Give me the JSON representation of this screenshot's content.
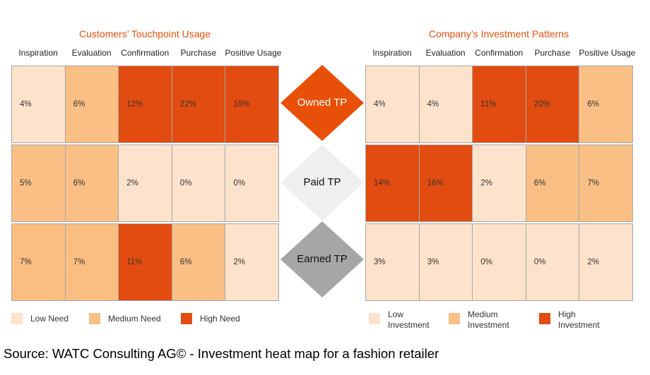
{
  "chart_data": [
    {
      "type": "heatmap",
      "title": "Customers’ Touchpoint Usage",
      "columns": [
        "Inspiration",
        "Evaluation",
        "Confirmation",
        "Purchase",
        "Positive Usage"
      ],
      "rows": [
        "Owned TP",
        "Paid TP",
        "Earned TP"
      ],
      "values": [
        [
          "4%",
          "6%",
          "12%",
          "22%",
          "10%"
        ],
        [
          "5%",
          "6%",
          "2%",
          "0%",
          "0%"
        ],
        [
          "7%",
          "7%",
          "11%",
          "6%",
          "2%"
        ]
      ],
      "levels": [
        [
          "low",
          "medium",
          "high",
          "high",
          "high"
        ],
        [
          "medium",
          "medium",
          "low",
          "low",
          "low"
        ],
        [
          "medium",
          "medium",
          "high",
          "medium",
          "low"
        ]
      ],
      "legend": [
        {
          "level": "low",
          "label": "Low Need"
        },
        {
          "level": "medium",
          "label": "Medium Need"
        },
        {
          "level": "high",
          "label": "High Need"
        }
      ]
    },
    {
      "type": "heatmap",
      "title": "Company’s Investment Patterns",
      "columns": [
        "Inspiration",
        "Evaluation",
        "Confirmation",
        "Purchase",
        "Positive Usage"
      ],
      "rows": [
        "Owned TP",
        "Paid TP",
        "Earned TP"
      ],
      "values": [
        [
          "4%",
          "4%",
          "11%",
          "20%",
          "6%"
        ],
        [
          "14%",
          "16%",
          "2%",
          "6%",
          "7%"
        ],
        [
          "3%",
          "3%",
          "0%",
          "0%",
          "2%"
        ]
      ],
      "levels": [
        [
          "low",
          "low",
          "high",
          "high",
          "medium"
        ],
        [
          "high",
          "high",
          "low",
          "medium",
          "medium"
        ],
        [
          "low",
          "low",
          "low",
          "low",
          "low"
        ]
      ],
      "legend": [
        {
          "level": "low",
          "label": [
            "Low",
            "Investment"
          ]
        },
        {
          "level": "medium",
          "label": [
            "Medium",
            "Investment"
          ]
        },
        {
          "level": "high",
          "label": [
            "High",
            "Investment"
          ]
        }
      ]
    }
  ],
  "touchpoints": [
    {
      "label": "Owned TP",
      "fill": "#e8500a",
      "text_color": "#ffffff"
    },
    {
      "label": "Paid TP",
      "fill": "#efefef",
      "text_color": "#111111"
    },
    {
      "label": "Earned TP",
      "fill": "#a6a6a6",
      "text_color": "#111111"
    }
  ],
  "colors": {
    "low": "#fde3cb",
    "medium": "#f9bf85",
    "medium_alt": "#fbbe82",
    "high": "#e34c10"
  },
  "source": "Source: WATC Consulting AG© - Investment heat map for a fashion retailer"
}
